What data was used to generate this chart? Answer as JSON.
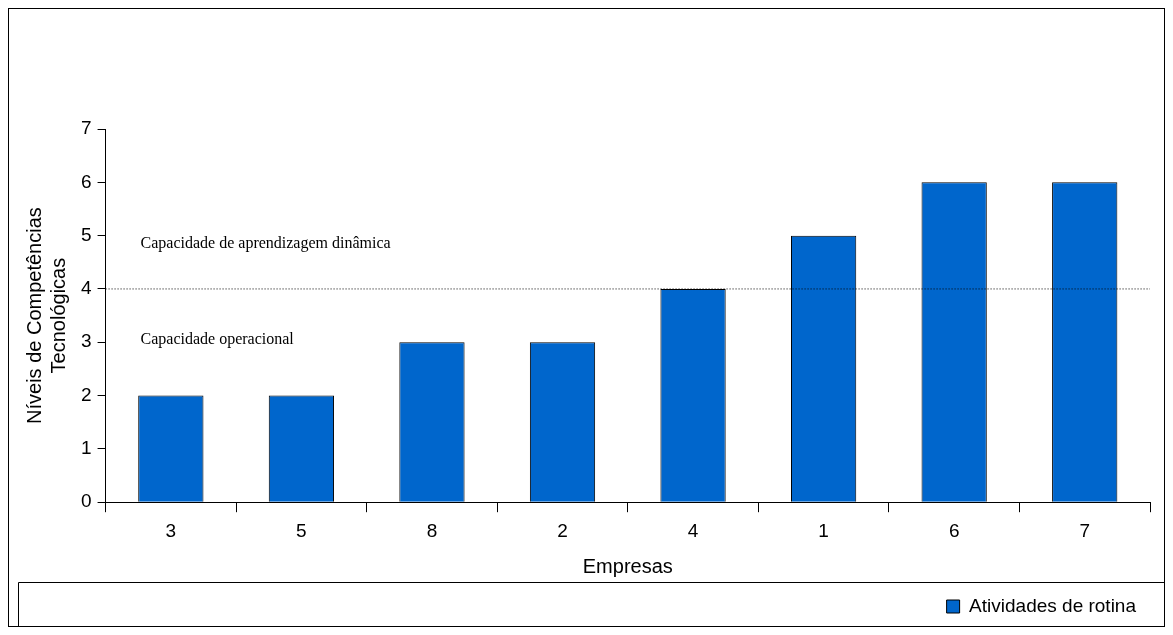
{
  "chart_data": {
    "type": "bar",
    "xlabel": "Empresas",
    "ylabel": "Níveis de Competências Tecnológicas",
    "categories": [
      "3",
      "5",
      "8",
      "2",
      "4",
      "1",
      "6",
      "7"
    ],
    "series": [
      {
        "name": "Atividades de rotina",
        "color": "#0066cc",
        "values": [
          2,
          2,
          3,
          3,
          4,
          5,
          6,
          6
        ]
      }
    ],
    "ylim": [
      0,
      7
    ],
    "yticks": [
      0,
      1,
      2,
      3,
      4,
      5,
      6,
      7
    ],
    "grid": false,
    "legend": "bottom right",
    "ref_lines": [
      {
        "axis": "y",
        "value": 4,
        "label": null,
        "color": "#000000",
        "line_style": "dotted"
      }
    ],
    "annotations": [
      "Capacidade de aprendizagem dinâmica",
      "Capacidade operacional"
    ]
  }
}
